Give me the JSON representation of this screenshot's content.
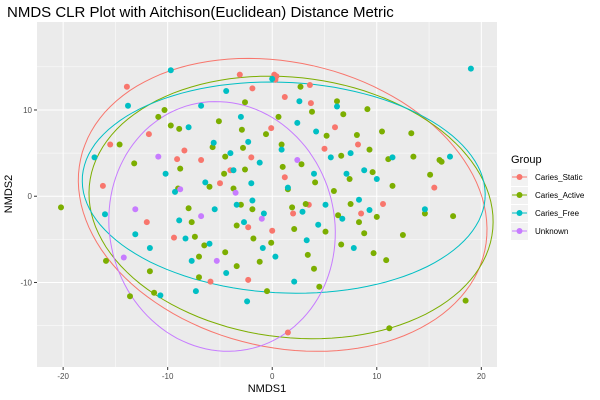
{
  "chart_data": {
    "type": "scatter",
    "title": "NMDS CLR Plot with Aitchison(Euclidean) Distance Metric",
    "xlabel": "NMDS1",
    "ylabel": "NMDS2",
    "xlim": [
      -22.5,
      21.5
    ],
    "ylim": [
      -19.8,
      20.2
    ],
    "xticks": [
      -20,
      -10,
      0,
      10,
      20
    ],
    "yticks": [
      -10,
      0,
      10
    ],
    "grid": true,
    "legend": {
      "title": "Group",
      "position": "right"
    },
    "series": [
      {
        "name": "Caries_Static",
        "color": "#F8766D",
        "ellipse": {
          "cx": 1.0,
          "cy": -1.0,
          "rx": 20.2,
          "ry": 16.2,
          "angle": -25
        },
        "points": [
          [
            -1.9,
            12.5
          ],
          [
            -3.1,
            14.1
          ],
          [
            -11.8,
            7.2
          ],
          [
            -13.9,
            12.7
          ],
          [
            -16.2,
            1.2
          ],
          [
            0.2,
            14.1
          ],
          [
            0.4,
            13.9
          ],
          [
            0.3,
            13.5
          ],
          [
            6.0,
            8.0
          ],
          [
            1.2,
            11.5
          ],
          [
            3.6,
            12.9
          ],
          [
            3.7,
            10.8
          ],
          [
            -0.1,
            7.9
          ],
          [
            -9.1,
            4.3
          ],
          [
            -8.4,
            5.3
          ],
          [
            -4.0,
            3.0
          ],
          [
            1.2,
            2.2
          ],
          [
            5.0,
            5.5
          ],
          [
            2.0,
            -2.0
          ],
          [
            -2.3,
            -9.7
          ],
          [
            10.6,
            -0.9
          ],
          [
            -9.4,
            -4.8
          ],
          [
            -5.0,
            1.5
          ],
          [
            -6.8,
            4.2
          ],
          [
            0.0,
            -4.0
          ],
          [
            8.2,
            6.0
          ],
          [
            -2.3,
            -3.6
          ],
          [
            3.5,
            -1.0
          ],
          [
            15.5,
            1.0
          ],
          [
            -12.0,
            -3.0
          ],
          [
            -5.9,
            -9.9
          ],
          [
            8.5,
            -2.0
          ],
          [
            -2.0,
            4.5
          ],
          [
            1.5,
            -15.8
          ],
          [
            -15.5,
            6.0
          ]
        ]
      },
      {
        "name": "Caries_Active",
        "color": "#7CAE00",
        "ellipse": {
          "cx": 1.8,
          "cy": -1.3,
          "rx": 19.5,
          "ry": 15.0,
          "angle": -12
        },
        "points": [
          [
            -20.2,
            -1.3
          ],
          [
            -15.9,
            -7.5
          ],
          [
            -11.7,
            -8.7
          ],
          [
            -14.6,
            6.0
          ],
          [
            -13.2,
            3.8
          ],
          [
            -13.6,
            -11.6
          ],
          [
            -11.3,
            -11.2
          ],
          [
            -10.9,
            9.2
          ],
          [
            -9.7,
            8.2
          ],
          [
            -10.3,
            10.0
          ],
          [
            -8.9,
            7.8
          ],
          [
            -8.8,
            3.2
          ],
          [
            -9.0,
            0.9
          ],
          [
            -8.0,
            -1.4
          ],
          [
            -7.7,
            -3.0
          ],
          [
            -7.4,
            -4.7
          ],
          [
            -7.0,
            -9.4
          ],
          [
            -6.5,
            -5.7
          ],
          [
            -6.0,
            1.1
          ],
          [
            -5.7,
            5.7
          ],
          [
            -5.1,
            8.7
          ],
          [
            -4.5,
            4.6
          ],
          [
            -4.6,
            2.6
          ],
          [
            -3.7,
            0.9
          ],
          [
            -3.4,
            -3.4
          ],
          [
            -3.4,
            -8.1
          ],
          [
            -2.9,
            7.7
          ],
          [
            -2.8,
            5.6
          ],
          [
            -2.6,
            10.9
          ],
          [
            -2.6,
            3.1
          ],
          [
            -1.9,
            -1.5
          ],
          [
            -1.8,
            -4.9
          ],
          [
            -1.2,
            -7.6
          ],
          [
            -0.6,
            7.2
          ],
          [
            -0.1,
            -5.4
          ],
          [
            0.6,
            9.2
          ],
          [
            0.9,
            6.0
          ],
          [
            1.0,
            3.4
          ],
          [
            1.5,
            0.8
          ],
          [
            1.9,
            -1.3
          ],
          [
            2.1,
            -3.8
          ],
          [
            2.7,
            12.7
          ],
          [
            2.8,
            3.7
          ],
          [
            3.2,
            -0.9
          ],
          [
            3.4,
            -6.8
          ],
          [
            3.8,
            9.8
          ],
          [
            4.0,
            -8.4
          ],
          [
            4.1,
            1.6
          ],
          [
            4.5,
            -10.5
          ],
          [
            5.1,
            -4.1
          ],
          [
            5.2,
            7.0
          ],
          [
            5.9,
            0.6
          ],
          [
            6.3,
            -2.2
          ],
          [
            6.2,
            11.0
          ],
          [
            6.6,
            4.7
          ],
          [
            6.6,
            -5.6
          ],
          [
            7.4,
            2.0
          ],
          [
            7.5,
            -0.9
          ],
          [
            8.1,
            7.1
          ],
          [
            8.3,
            -3.0
          ],
          [
            8.8,
            -4.3
          ],
          [
            9.1,
            10.1
          ],
          [
            9.3,
            5.4
          ],
          [
            9.6,
            2.8
          ],
          [
            10.0,
            -2.4
          ],
          [
            10.5,
            7.5
          ],
          [
            10.9,
            -7.4
          ],
          [
            11.1,
            4.3
          ],
          [
            11.2,
            -15.3
          ],
          [
            11.5,
            1.2
          ],
          [
            12.5,
            -4.5
          ],
          [
            13.3,
            7.3
          ],
          [
            14.6,
            -2.0
          ],
          [
            15.1,
            2.5
          ],
          [
            16.2,
            4.0
          ],
          [
            18.5,
            -12.1
          ],
          [
            17.3,
            -2.3
          ],
          [
            16.0,
            4.2
          ],
          [
            -0.5,
            -11.0
          ],
          [
            -7.0,
            -7.0
          ],
          [
            -3.0,
            -1.0
          ],
          [
            -4.5,
            -6.5
          ],
          [
            6.8,
            9.5
          ],
          [
            9.7,
            -6.6
          ],
          [
            13.5,
            4.6
          ]
        ]
      },
      {
        "name": "Caries_Free",
        "color": "#00BFC4",
        "ellipse": {
          "cx": 1.1,
          "cy": 1.0,
          "rx": 19.3,
          "ry": 12.2,
          "angle": -4
        },
        "points": [
          [
            -17.0,
            4.5
          ],
          [
            -16.0,
            -2.1
          ],
          [
            -13.1,
            -4.4
          ],
          [
            -13.8,
            10.5
          ],
          [
            -11.7,
            -6.0
          ],
          [
            -10.7,
            -11.5
          ],
          [
            -10.2,
            2.6
          ],
          [
            -9.7,
            14.6
          ],
          [
            -9.3,
            0.5
          ],
          [
            -8.9,
            -2.8
          ],
          [
            -8.3,
            -4.9
          ],
          [
            -7.7,
            -7.5
          ],
          [
            -7.3,
            -11.0
          ],
          [
            -6.8,
            10.5
          ],
          [
            -6.4,
            1.6
          ],
          [
            -6.0,
            -5.5
          ],
          [
            -5.6,
            6.2
          ],
          [
            -5.5,
            -1.5
          ],
          [
            -4.4,
            -8.9
          ],
          [
            -4.4,
            12.2
          ],
          [
            -3.7,
            3.0
          ],
          [
            -3.4,
            -1.0
          ],
          [
            -3.0,
            9.2
          ],
          [
            -2.7,
            -3.0
          ],
          [
            -2.4,
            -12.2
          ],
          [
            -2.3,
            6.3
          ],
          [
            -1.9,
            -0.5
          ],
          [
            -1.2,
            3.9
          ],
          [
            -0.9,
            -6.0
          ],
          [
            -0.8,
            -2.0
          ],
          [
            0.3,
            -7.0
          ],
          [
            0.9,
            5.4
          ],
          [
            1.5,
            1.0
          ],
          [
            2.1,
            -9.9
          ],
          [
            2.4,
            8.5
          ],
          [
            2.9,
            -1.8
          ],
          [
            3.3,
            -5.1
          ],
          [
            4.0,
            2.6
          ],
          [
            4.2,
            7.5
          ],
          [
            4.4,
            -3.3
          ],
          [
            5.1,
            -1.0
          ],
          [
            5.6,
            4.5
          ],
          [
            6.2,
            10.4
          ],
          [
            6.7,
            -2.6
          ],
          [
            7.1,
            2.6
          ],
          [
            7.5,
            5.0
          ],
          [
            7.8,
            -6.0
          ],
          [
            8.3,
            -0.4
          ],
          [
            8.8,
            3.0
          ],
          [
            9.3,
            -1.6
          ],
          [
            10.0,
            2.0
          ],
          [
            11.5,
            4.5
          ],
          [
            14.6,
            -1.5
          ],
          [
            17.0,
            4.6
          ],
          [
            19.0,
            14.8
          ],
          [
            2.6,
            11.0
          ],
          [
            0.0,
            13.6
          ],
          [
            -8.0,
            8.0
          ],
          [
            -4.0,
            5.0
          ],
          [
            -2.0,
            1.5
          ]
        ]
      },
      {
        "name": "Unknown",
        "color": "#C77CFF",
        "ellipse": {
          "cx": -4.8,
          "cy": -3.5,
          "rx": 10.8,
          "ry": 14.5,
          "angle": 5
        },
        "points": [
          [
            -14.2,
            -7.1
          ],
          [
            -8.8,
            0.8
          ],
          [
            -5.3,
            -7.5
          ],
          [
            -3.5,
            0.4
          ],
          [
            -1.0,
            -2.6
          ],
          [
            -6.8,
            -2.3
          ],
          [
            -10.9,
            4.6
          ],
          [
            2.4,
            4.2
          ],
          [
            -13.1,
            -1.5
          ]
        ]
      }
    ]
  }
}
